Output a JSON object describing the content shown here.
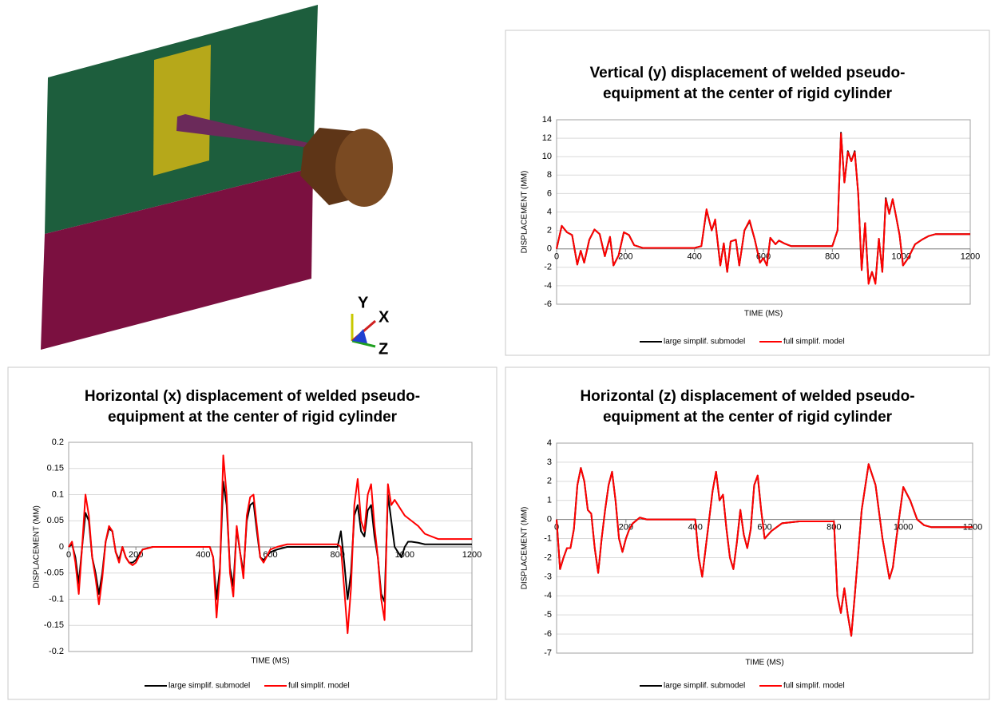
{
  "figure": {
    "axis_labels": [
      "Y",
      "X",
      "Z"
    ]
  },
  "chart_data": [
    {
      "type": "line",
      "title": [
        "Vertical (y) displacement of welded pseudo-",
        "equipment at the center of rigid cylinder"
      ],
      "x_label": "TIME (MS)",
      "y_label": "DISPLACEMENT  (MM)",
      "xlim": [
        0,
        1200
      ],
      "xticks": [
        0,
        200,
        400,
        600,
        800,
        1000,
        1200
      ],
      "ylim": [
        -6,
        14
      ],
      "yticks": [
        -6,
        -4,
        -2,
        0,
        2,
        4,
        6,
        8,
        10,
        12,
        14
      ],
      "grid": true,
      "x": [
        0,
        15,
        30,
        45,
        60,
        70,
        80,
        95,
        110,
        125,
        140,
        155,
        165,
        180,
        195,
        210,
        225,
        250,
        400,
        420,
        435,
        450,
        460,
        475,
        485,
        495,
        505,
        520,
        530,
        545,
        560,
        575,
        590,
        600,
        610,
        620,
        635,
        645,
        660,
        680,
        800,
        815,
        825,
        835,
        845,
        855,
        865,
        875,
        885,
        895,
        905,
        915,
        925,
        935,
        945,
        955,
        965,
        975,
        985,
        995,
        1005,
        1020,
        1040,
        1060,
        1080,
        1100,
        1200
      ],
      "series": [
        {
          "name": "large simplif. submodel",
          "color": "#000000",
          "values": [
            0,
            2.5,
            1.8,
            1.5,
            -1.7,
            -0.2,
            -1.5,
            1.0,
            2.1,
            1.6,
            -0.8,
            1.3,
            -1.8,
            -0.7,
            1.8,
            1.5,
            0.4,
            0.1,
            0.1,
            0.3,
            4.2,
            2.0,
            3.1,
            -1.8,
            0.6,
            -2.5,
            0.8,
            1.0,
            -1.8,
            2.0,
            3.0,
            1.0,
            -1.5,
            -1.0,
            -1.8,
            1.2,
            0.5,
            0.9,
            0.6,
            0.3,
            0.3,
            2,
            12.6,
            7.2,
            10.6,
            9.5,
            10.6,
            6,
            -2.3,
            2.8,
            -3.7,
            -2.5,
            -3.7,
            1.1,
            -2.5,
            5.5,
            3.8,
            5.4,
            3.5,
            1.5,
            -1.8,
            -1.0,
            0.5,
            1.0,
            1.4,
            1.6,
            1.6
          ]
        },
        {
          "name": "full simplif. model",
          "color": "#ff0000",
          "values": [
            0,
            2.5,
            1.8,
            1.5,
            -1.7,
            -0.2,
            -1.5,
            1.0,
            2.1,
            1.6,
            -0.8,
            1.3,
            -1.8,
            -0.7,
            1.8,
            1.5,
            0.4,
            0.1,
            0.1,
            0.3,
            4.3,
            2.0,
            3.2,
            -1.8,
            0.6,
            -2.5,
            0.8,
            1.0,
            -1.8,
            2.0,
            3.1,
            1.0,
            -1.5,
            -1.0,
            -1.8,
            1.2,
            0.5,
            0.9,
            0.6,
            0.3,
            0.3,
            2,
            12.5,
            7.2,
            10.5,
            9.5,
            10.5,
            6,
            -2.3,
            2.8,
            -3.8,
            -2.5,
            -3.8,
            1.1,
            -2.5,
            5.4,
            3.8,
            5.4,
            3.5,
            1.5,
            -1.8,
            -1.0,
            0.5,
            1.0,
            1.4,
            1.6,
            1.6
          ]
        }
      ]
    },
    {
      "type": "line",
      "title": [
        "Horizontal (x) displacement of welded pseudo-",
        "equipment at the center of rigid cylinder"
      ],
      "x_label": "TIME (MS)",
      "y_label": "DISPLACEMENT  (MM)",
      "xlim": [
        0,
        1200
      ],
      "xticks": [
        0,
        200,
        400,
        600,
        800,
        1000,
        1200
      ],
      "ylim": [
        -0.2,
        0.2
      ],
      "yticks": [
        -0.2,
        -0.15,
        -0.1,
        -0.05,
        0,
        0.05,
        0.1,
        0.15,
        0.2
      ],
      "grid": true,
      "x": [
        0,
        10,
        20,
        30,
        40,
        50,
        60,
        70,
        80,
        90,
        100,
        110,
        120,
        130,
        140,
        150,
        160,
        170,
        180,
        190,
        200,
        220,
        250,
        300,
        400,
        420,
        430,
        440,
        450,
        460,
        470,
        480,
        490,
        500,
        510,
        520,
        530,
        540,
        550,
        560,
        570,
        580,
        600,
        620,
        650,
        700,
        800,
        810,
        820,
        830,
        840,
        850,
        860,
        870,
        880,
        890,
        900,
        910,
        920,
        930,
        940,
        950,
        960,
        970,
        980,
        990,
        1000,
        1010,
        1020,
        1040,
        1060,
        1080,
        1100,
        1150,
        1200
      ],
      "series": [
        {
          "name": "large simplif. submodel",
          "color": "#000000",
          "values": [
            0,
            0.005,
            -0.02,
            -0.07,
            0.0,
            0.065,
            0.05,
            -0.02,
            -0.05,
            -0.09,
            -0.05,
            0.01,
            0.035,
            0.03,
            -0.01,
            -0.025,
            0.0,
            -0.02,
            -0.03,
            -0.03,
            -0.025,
            -0.005,
            0,
            0,
            0,
            0.0,
            -0.02,
            -0.1,
            -0.04,
            0.125,
            0.08,
            -0.04,
            -0.075,
            0.035,
            -0.01,
            -0.05,
            0.05,
            0.08,
            0.085,
            0.03,
            -0.02,
            -0.025,
            -0.01,
            -0.005,
            0.0,
            0.0,
            0.0,
            0.03,
            -0.03,
            -0.1,
            -0.05,
            0.06,
            0.08,
            0.03,
            0.02,
            0.07,
            0.08,
            0.02,
            -0.02,
            -0.09,
            -0.105,
            0.1,
            0.05,
            0.0,
            -0.01,
            -0.02,
            0.0,
            0.01,
            0.01,
            0.008,
            0.005,
            0.005,
            0.005,
            0.005,
            0.005
          ]
        },
        {
          "name": "full simplif. model",
          "color": "#ff0000",
          "values": [
            0,
            0.01,
            -0.03,
            -0.09,
            0.0,
            0.1,
            0.06,
            -0.02,
            -0.06,
            -0.11,
            -0.06,
            0.01,
            0.04,
            0.03,
            -0.01,
            -0.03,
            0.0,
            -0.02,
            -0.03,
            -0.035,
            -0.03,
            -0.005,
            0,
            0,
            0,
            0.0,
            -0.02,
            -0.135,
            -0.05,
            0.175,
            0.1,
            -0.05,
            -0.095,
            0.04,
            -0.01,
            -0.06,
            0.06,
            0.095,
            0.1,
            0.04,
            -0.02,
            -0.03,
            -0.005,
            0,
            0.005,
            0.005,
            0.005,
            0.0,
            -0.08,
            -0.165,
            -0.08,
            0.08,
            0.13,
            0.05,
            0.03,
            0.1,
            0.12,
            0.04,
            -0.02,
            -0.1,
            -0.14,
            0.12,
            0.08,
            0.09,
            0.08,
            0.07,
            0.06,
            0.055,
            0.05,
            0.04,
            0.025,
            0.02,
            0.015,
            0.015,
            0.015
          ]
        }
      ]
    },
    {
      "type": "line",
      "title": [
        "Horizontal (z) displacement of welded pseudo-",
        "equipment at the center of rigid cylinder"
      ],
      "x_label": "TIME (MS)",
      "y_label": "DISPLACEMENT  (MM)",
      "xlim": [
        0,
        1200
      ],
      "xticks": [
        0,
        200,
        400,
        600,
        800,
        1000,
        1200
      ],
      "ylim": [
        -7,
        4
      ],
      "yticks": [
        -7,
        -6,
        -5,
        -4,
        -3,
        -2,
        -1,
        0,
        1,
        2,
        3,
        4
      ],
      "grid": true,
      "x": [
        0,
        10,
        20,
        30,
        40,
        50,
        60,
        70,
        80,
        90,
        100,
        110,
        120,
        130,
        140,
        150,
        160,
        170,
        180,
        190,
        200,
        210,
        220,
        240,
        260,
        300,
        400,
        410,
        420,
        430,
        440,
        450,
        460,
        470,
        480,
        490,
        500,
        510,
        520,
        530,
        540,
        550,
        560,
        570,
        580,
        590,
        600,
        620,
        650,
        700,
        800,
        810,
        820,
        830,
        840,
        850,
        860,
        880,
        900,
        920,
        940,
        960,
        970,
        980,
        1000,
        1020,
        1040,
        1060,
        1080,
        1100,
        1200
      ],
      "series": [
        {
          "name": "large simplif. submodel",
          "color": "#000000",
          "values": [
            0,
            -2.6,
            -2.0,
            -1.5,
            -1.5,
            -0.5,
            1.8,
            2.7,
            2.0,
            0.5,
            0.3,
            -1.5,
            -2.8,
            -1.0,
            0.5,
            1.8,
            2.5,
            1.0,
            -1.0,
            -1.7,
            -1.0,
            -0.5,
            -0.2,
            0.1,
            0,
            0,
            0,
            -2.0,
            -3.0,
            -1.5,
            0.0,
            1.5,
            2.5,
            1.0,
            1.3,
            -0.5,
            -2.0,
            -2.6,
            -1.2,
            0.5,
            -0.8,
            -1.5,
            -0.5,
            1.8,
            2.3,
            0.5,
            -1.0,
            -0.6,
            -0.2,
            -0.1,
            -0.1,
            -4.0,
            -4.9,
            -3.6,
            -5.0,
            -6.1,
            -4.0,
            0.5,
            2.9,
            1.8,
            -1.0,
            -3.1,
            -2.5,
            -1.0,
            1.7,
            1.0,
            0.0,
            -0.3,
            -0.4,
            -0.4,
            -0.4
          ]
        },
        {
          "name": "full simplif. model",
          "color": "#ff0000",
          "values": [
            0,
            -2.6,
            -2.0,
            -1.5,
            -1.5,
            -0.5,
            1.8,
            2.7,
            2.0,
            0.5,
            0.3,
            -1.5,
            -2.8,
            -1.0,
            0.5,
            1.8,
            2.5,
            1.0,
            -1.0,
            -1.7,
            -1.0,
            -0.5,
            -0.2,
            0.1,
            0,
            0,
            0,
            -2.0,
            -3.0,
            -1.5,
            0.0,
            1.5,
            2.5,
            1.0,
            1.3,
            -0.5,
            -2.0,
            -2.6,
            -1.2,
            0.5,
            -0.8,
            -1.5,
            -0.5,
            1.8,
            2.3,
            0.5,
            -1.0,
            -0.6,
            -0.2,
            -0.1,
            -0.1,
            -4.0,
            -4.9,
            -3.6,
            -5.0,
            -6.1,
            -4.0,
            0.5,
            2.9,
            1.8,
            -1.0,
            -3.1,
            -2.5,
            -1.0,
            1.7,
            1.0,
            0.0,
            -0.3,
            -0.4,
            -0.4,
            -0.4
          ]
        }
      ]
    }
  ]
}
